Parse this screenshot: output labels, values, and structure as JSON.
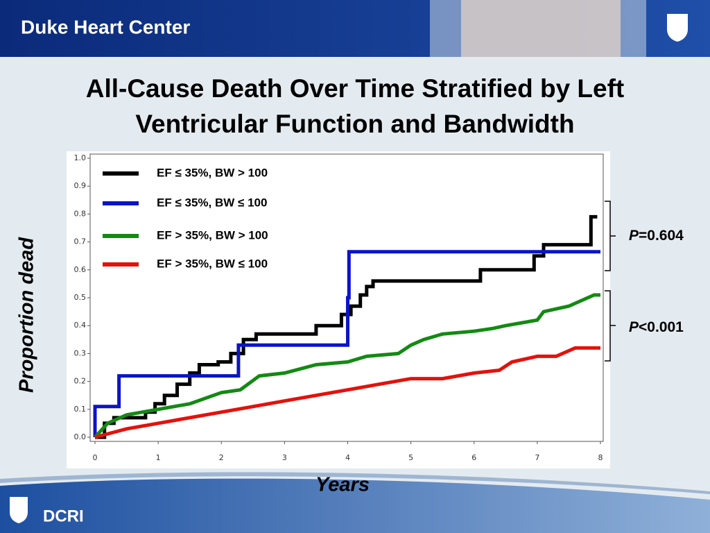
{
  "header": {
    "title": "Duke Heart Center"
  },
  "footer": {
    "label": "DCRI"
  },
  "chart_data": {
    "type": "line",
    "title": "All-Cause Death Over Time Stratified by Left Ventricular Function and Bandwidth",
    "xlabel": "Years",
    "ylabel": "Proportion dead",
    "annotations": [
      "P=0.604",
      "P<0.001"
    ],
    "xlim": [
      0,
      8
    ],
    "ylim": [
      0,
      1
    ],
    "xticks": [
      0,
      1,
      2,
      3,
      4,
      5,
      6,
      7,
      8
    ],
    "yticks": [
      {
        "value": 0,
        "label": "0.0"
      },
      0.1,
      0.2,
      0.3,
      0.4,
      0.5,
      0.6,
      0.7,
      0.8,
      0.9,
      {
        "value": 1,
        "label": "1.0"
      }
    ],
    "series": [
      {
        "name": "EF ≤ 35%, BW > 100",
        "color": "#000000",
        "x": [
          0,
          0.15,
          0.15,
          0.3,
          0.3,
          0.8,
          0.8,
          0.95,
          0.95,
          1.1,
          1.1,
          1.3,
          1.3,
          1.5,
          1.5,
          1.65,
          1.65,
          1.95,
          1.95,
          2.15,
          2.15,
          2.35,
          2.35,
          2.55,
          2.55,
          3.5,
          3.5,
          3.9,
          3.9,
          4.05,
          4.05,
          4.2,
          4.2,
          4.3,
          4.3,
          4.4,
          4.4,
          6.1,
          6.1,
          6.95,
          6.95,
          7.1,
          7.1,
          7.85,
          7.85,
          7.95
        ],
        "values": [
          0,
          0,
          0.05,
          0.05,
          0.07,
          0.07,
          0.09,
          0.09,
          0.12,
          0.12,
          0.15,
          0.15,
          0.19,
          0.19,
          0.23,
          0.23,
          0.26,
          0.26,
          0.27,
          0.27,
          0.3,
          0.3,
          0.35,
          0.35,
          0.37,
          0.37,
          0.4,
          0.4,
          0.44,
          0.44,
          0.47,
          0.47,
          0.51,
          0.51,
          0.54,
          0.54,
          0.56,
          0.56,
          0.6,
          0.6,
          0.65,
          0.65,
          0.69,
          0.69,
          0.79,
          0.79
        ]
      },
      {
        "name": "EF ≤ 35%, BW ≤ 100",
        "color": "#0a14c8",
        "x": [
          0,
          0,
          0.38,
          0.38,
          2.27,
          2.27,
          4.0,
          4.0,
          4.02,
          4.02,
          8
        ],
        "values": [
          0,
          0.11,
          0.11,
          0.22,
          0.22,
          0.33,
          0.33,
          0.5,
          0.5,
          0.665,
          0.665
        ]
      },
      {
        "name": "EF > 35%, BW > 100",
        "color": "#138a13",
        "x": [
          0,
          0.2,
          0.5,
          1,
          1.5,
          2,
          2.3,
          2.6,
          3,
          3.5,
          4,
          4.3,
          4.8,
          5,
          5.2,
          5.5,
          6,
          6.3,
          6.5,
          7,
          7.1,
          7.5,
          7.7,
          7.9,
          8
        ],
        "values": [
          0,
          0.05,
          0.08,
          0.1,
          0.12,
          0.16,
          0.17,
          0.22,
          0.23,
          0.26,
          0.27,
          0.29,
          0.3,
          0.33,
          0.35,
          0.37,
          0.38,
          0.39,
          0.4,
          0.42,
          0.45,
          0.47,
          0.49,
          0.51,
          0.51
        ]
      },
      {
        "name": "EF > 35%, BW ≤ 100",
        "color": "#e3120b",
        "x": [
          0,
          0.5,
          1,
          2,
          2.5,
          3,
          3.5,
          4,
          4.5,
          5,
          5.5,
          6,
          6.4,
          6.6,
          7,
          7.3,
          7.6,
          8
        ],
        "values": [
          0,
          0.03,
          0.05,
          0.09,
          0.11,
          0.13,
          0.15,
          0.17,
          0.19,
          0.21,
          0.21,
          0.23,
          0.24,
          0.27,
          0.29,
          0.29,
          0.32,
          0.32
        ]
      }
    ]
  }
}
